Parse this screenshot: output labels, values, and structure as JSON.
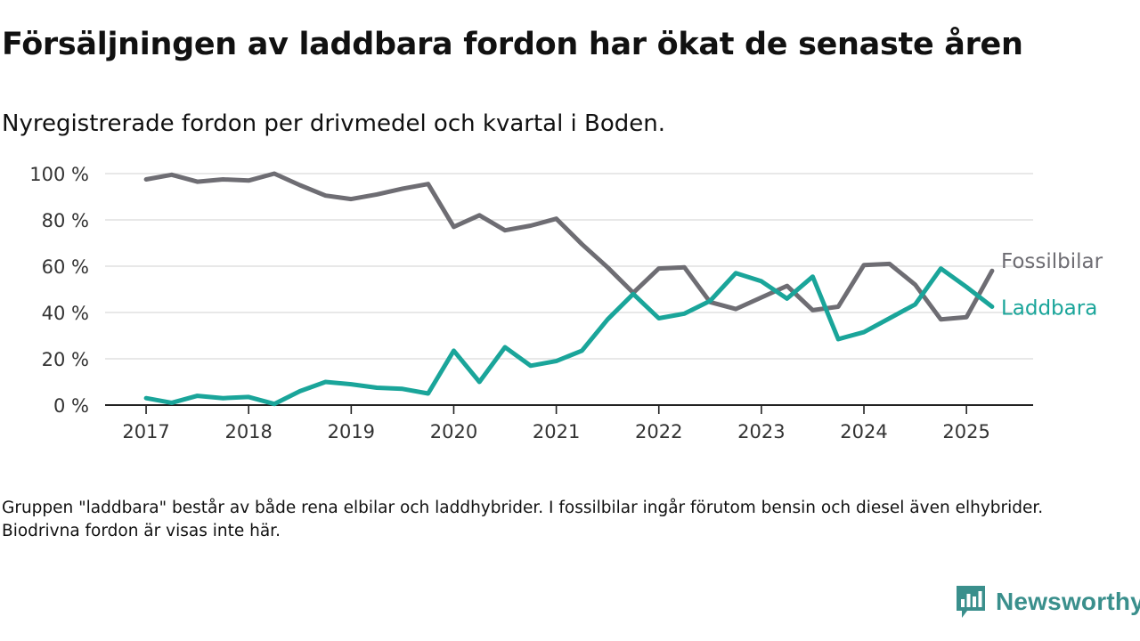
{
  "header": {
    "title": "Försäljningen av laddbara fordon har ökat de senaste åren",
    "subtitle": "Nyregistrerade fordon per drivmedel och kvartal i Boden."
  },
  "footnote": "Gruppen \"laddbara\" består av både rena elbilar och laddhybrider. I fossilbilar ingår förutom bensin och diesel även elhybrider. Biodrivna fordon är visas inte här.",
  "brand": {
    "name": "Newsworthy",
    "icon": "newsworthy-logo-icon",
    "color": "#3a8f8c"
  },
  "chart_data": {
    "type": "line",
    "ylim": [
      0,
      100
    ],
    "y_ticks": [
      0,
      20,
      40,
      60,
      80,
      100
    ],
    "y_tick_labels": [
      "0 %",
      "20 %",
      "40 %",
      "60 %",
      "80 %",
      "100 %"
    ],
    "x_ticks": [
      2017,
      2018,
      2019,
      2020,
      2021,
      2022,
      2023,
      2024,
      2025
    ],
    "x_tick_labels": [
      "2017",
      "2018",
      "2019",
      "2020",
      "2021",
      "2022",
      "2023",
      "2024",
      "2025"
    ],
    "xlim": [
      2016.6,
      2025.65
    ],
    "grid": "horizontal",
    "x": [
      2017.0,
      2017.25,
      2017.5,
      2017.75,
      2018.0,
      2018.25,
      2018.5,
      2018.75,
      2019.0,
      2019.25,
      2019.5,
      2019.75,
      2020.0,
      2020.25,
      2020.5,
      2020.75,
      2021.0,
      2021.25,
      2021.5,
      2021.75,
      2022.0,
      2022.25,
      2022.5,
      2022.75,
      2023.0,
      2023.25,
      2023.5,
      2023.75,
      2024.0,
      2024.25,
      2024.5,
      2024.75,
      2025.0,
      2025.25
    ],
    "series": [
      {
        "name": "Fossilbilar",
        "color": "#6e6d73",
        "values": [
          97.5,
          99.5,
          96.5,
          97.5,
          97,
          100,
          95,
          90.5,
          89,
          91,
          93.5,
          95.5,
          77,
          82,
          75.5,
          77.5,
          80.5,
          69.5,
          59.5,
          48.5,
          59,
          59.5,
          44.5,
          41.5,
          46.5,
          51.5,
          41,
          42.5,
          60.5,
          61,
          52,
          37,
          38,
          58
        ]
      },
      {
        "name": "Laddbara",
        "color": "#1aa59a",
        "values": [
          3,
          1,
          4,
          3,
          3.5,
          0.5,
          6,
          10,
          9,
          7.5,
          7,
          5,
          23.5,
          10,
          25,
          17,
          19,
          23.5,
          37,
          48,
          37.5,
          39.5,
          45,
          57,
          53.5,
          46,
          55.5,
          28.5,
          31.5,
          37.5,
          43.5,
          59,
          51,
          42.5
        ]
      }
    ]
  }
}
